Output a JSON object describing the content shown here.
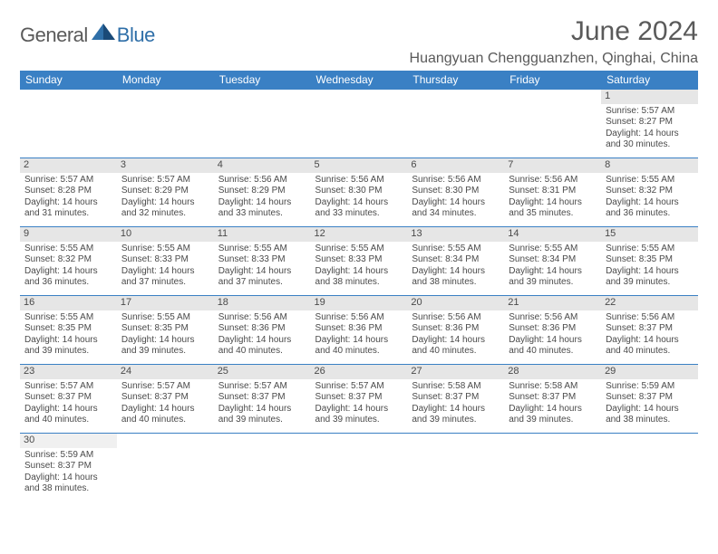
{
  "logo": {
    "general": "General",
    "blue": "Blue"
  },
  "title": "June 2024",
  "location": "Huangyuan Chengguanzhen, Qinghai, China",
  "colors": {
    "header_bg": "#3a80c4",
    "header_fg": "#ffffff",
    "daynum_bg": "#e6e6e6",
    "border": "#3a80c4",
    "text": "#4a4a4a",
    "title": "#5a5a5a",
    "logo_blue": "#2f6fa8"
  },
  "weekdays": [
    "Sunday",
    "Monday",
    "Tuesday",
    "Wednesday",
    "Thursday",
    "Friday",
    "Saturday"
  ],
  "weeks": [
    [
      null,
      null,
      null,
      null,
      null,
      null,
      {
        "n": "1",
        "sr": "5:57 AM",
        "ss": "8:27 PM",
        "dl": "14 hours and 30 minutes."
      }
    ],
    [
      {
        "n": "2",
        "sr": "5:57 AM",
        "ss": "8:28 PM",
        "dl": "14 hours and 31 minutes."
      },
      {
        "n": "3",
        "sr": "5:57 AM",
        "ss": "8:29 PM",
        "dl": "14 hours and 32 minutes."
      },
      {
        "n": "4",
        "sr": "5:56 AM",
        "ss": "8:29 PM",
        "dl": "14 hours and 33 minutes."
      },
      {
        "n": "5",
        "sr": "5:56 AM",
        "ss": "8:30 PM",
        "dl": "14 hours and 33 minutes."
      },
      {
        "n": "6",
        "sr": "5:56 AM",
        "ss": "8:30 PM",
        "dl": "14 hours and 34 minutes."
      },
      {
        "n": "7",
        "sr": "5:56 AM",
        "ss": "8:31 PM",
        "dl": "14 hours and 35 minutes."
      },
      {
        "n": "8",
        "sr": "5:55 AM",
        "ss": "8:32 PM",
        "dl": "14 hours and 36 minutes."
      }
    ],
    [
      {
        "n": "9",
        "sr": "5:55 AM",
        "ss": "8:32 PM",
        "dl": "14 hours and 36 minutes."
      },
      {
        "n": "10",
        "sr": "5:55 AM",
        "ss": "8:33 PM",
        "dl": "14 hours and 37 minutes."
      },
      {
        "n": "11",
        "sr": "5:55 AM",
        "ss": "8:33 PM",
        "dl": "14 hours and 37 minutes."
      },
      {
        "n": "12",
        "sr": "5:55 AM",
        "ss": "8:33 PM",
        "dl": "14 hours and 38 minutes."
      },
      {
        "n": "13",
        "sr": "5:55 AM",
        "ss": "8:34 PM",
        "dl": "14 hours and 38 minutes."
      },
      {
        "n": "14",
        "sr": "5:55 AM",
        "ss": "8:34 PM",
        "dl": "14 hours and 39 minutes."
      },
      {
        "n": "15",
        "sr": "5:55 AM",
        "ss": "8:35 PM",
        "dl": "14 hours and 39 minutes."
      }
    ],
    [
      {
        "n": "16",
        "sr": "5:55 AM",
        "ss": "8:35 PM",
        "dl": "14 hours and 39 minutes."
      },
      {
        "n": "17",
        "sr": "5:55 AM",
        "ss": "8:35 PM",
        "dl": "14 hours and 39 minutes."
      },
      {
        "n": "18",
        "sr": "5:56 AM",
        "ss": "8:36 PM",
        "dl": "14 hours and 40 minutes."
      },
      {
        "n": "19",
        "sr": "5:56 AM",
        "ss": "8:36 PM",
        "dl": "14 hours and 40 minutes."
      },
      {
        "n": "20",
        "sr": "5:56 AM",
        "ss": "8:36 PM",
        "dl": "14 hours and 40 minutes."
      },
      {
        "n": "21",
        "sr": "5:56 AM",
        "ss": "8:36 PM",
        "dl": "14 hours and 40 minutes."
      },
      {
        "n": "22",
        "sr": "5:56 AM",
        "ss": "8:37 PM",
        "dl": "14 hours and 40 minutes."
      }
    ],
    [
      {
        "n": "23",
        "sr": "5:57 AM",
        "ss": "8:37 PM",
        "dl": "14 hours and 40 minutes."
      },
      {
        "n": "24",
        "sr": "5:57 AM",
        "ss": "8:37 PM",
        "dl": "14 hours and 40 minutes."
      },
      {
        "n": "25",
        "sr": "5:57 AM",
        "ss": "8:37 PM",
        "dl": "14 hours and 39 minutes."
      },
      {
        "n": "26",
        "sr": "5:57 AM",
        "ss": "8:37 PM",
        "dl": "14 hours and 39 minutes."
      },
      {
        "n": "27",
        "sr": "5:58 AM",
        "ss": "8:37 PM",
        "dl": "14 hours and 39 minutes."
      },
      {
        "n": "28",
        "sr": "5:58 AM",
        "ss": "8:37 PM",
        "dl": "14 hours and 39 minutes."
      },
      {
        "n": "29",
        "sr": "5:59 AM",
        "ss": "8:37 PM",
        "dl": "14 hours and 38 minutes."
      }
    ],
    [
      {
        "n": "30",
        "sr": "5:59 AM",
        "ss": "8:37 PM",
        "dl": "14 hours and 38 minutes."
      },
      null,
      null,
      null,
      null,
      null,
      null
    ]
  ],
  "labels": {
    "sunrise": "Sunrise:",
    "sunset": "Sunset:",
    "daylight": "Daylight:"
  }
}
